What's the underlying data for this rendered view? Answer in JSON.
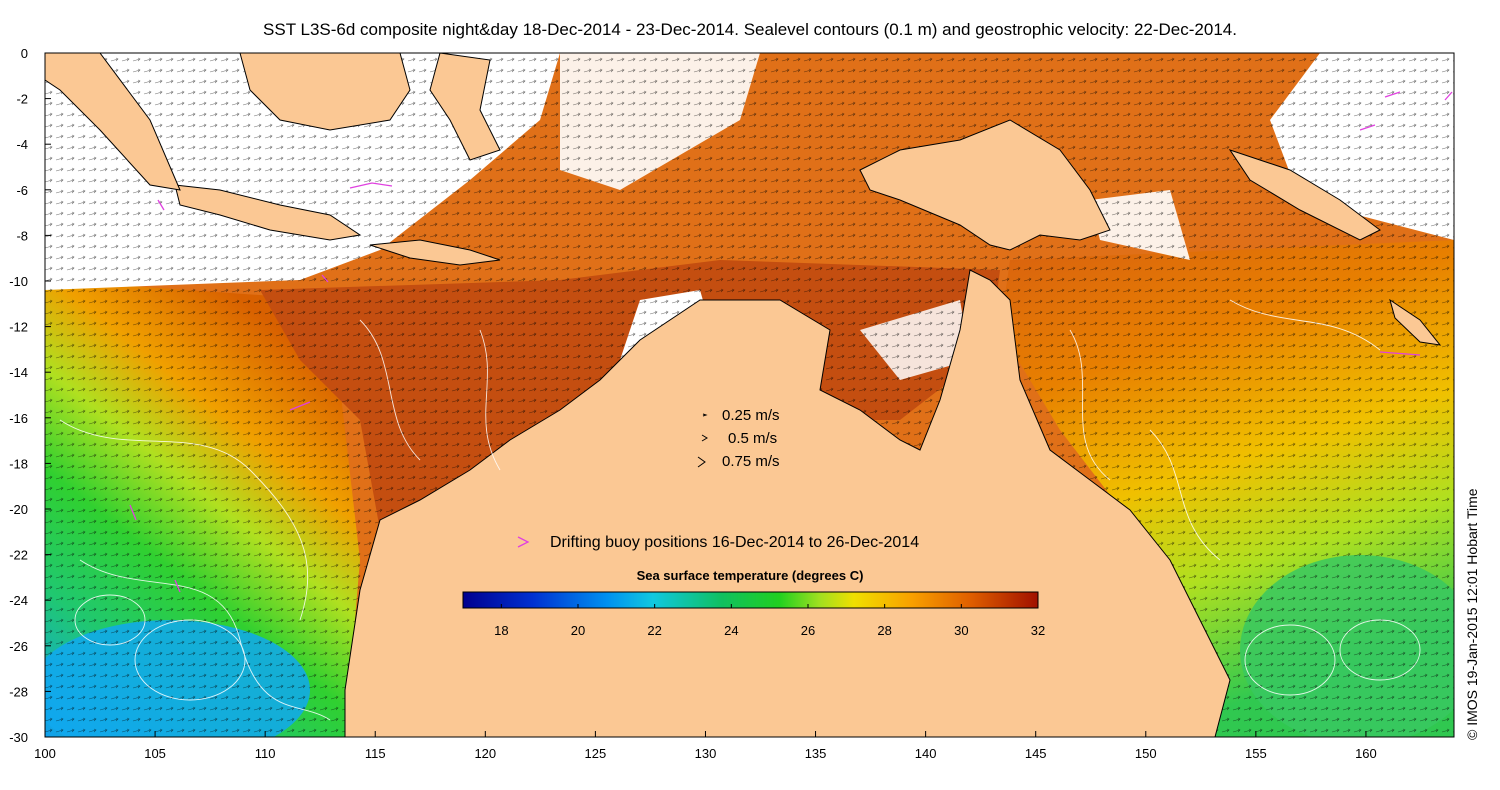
{
  "title": "SST L3S-6d composite night&day 18-Dec-2014 - 23-Dec-2014. Sealevel contours (0.1 m) and geostrophic velocity: 22-Dec-2014.",
  "credit": "© IMOS 19-Jan-2015 12:01 Hobart Time",
  "axes": {
    "x_ticks": [
      "100",
      "105",
      "110",
      "115",
      "120",
      "125",
      "130",
      "135",
      "140",
      "145",
      "150",
      "155",
      "160"
    ],
    "y_ticks": [
      "0",
      "-2",
      "-4",
      "-6",
      "-8",
      "-10",
      "-12",
      "-14",
      "-16",
      "-18",
      "-20",
      "-22",
      "-24",
      "-26",
      "-28",
      "-30"
    ],
    "lon_range": [
      100,
      164
    ],
    "lat_range": [
      -30,
      0
    ]
  },
  "velocity_legend": [
    "0.25 m/s",
    "0.5 m/s",
    "0.75 m/s"
  ],
  "buoy_legend": "Drifting buoy positions 16-Dec-2014 to 26-Dec-2014",
  "colorbar": {
    "title": "Sea surface temperature (degrees C)",
    "ticks": [
      "18",
      "20",
      "22",
      "24",
      "26",
      "28",
      "30",
      "32"
    ],
    "range": [
      17,
      32
    ]
  },
  "colors": {
    "land": "#fbc894",
    "cloud": "#ffffff",
    "buoy": "#e040e0",
    "coast": "#000000"
  }
}
